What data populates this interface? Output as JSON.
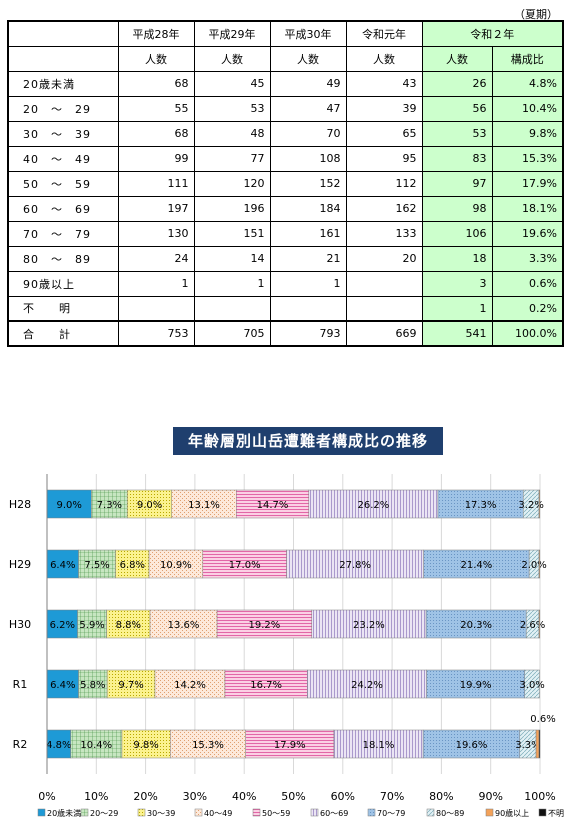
{
  "season_label": "（夏期）",
  "table": {
    "year_headers": [
      "平成28年",
      "平成29年",
      "平成30年",
      "令和元年",
      "令和２年"
    ],
    "sub_headers": [
      "人数",
      "人数",
      "人数",
      "人数",
      "人数",
      "構成比"
    ],
    "rows": [
      {
        "label": "20歳未満",
        "values": [
          "68",
          "45",
          "49",
          "43",
          "26",
          "4.8%"
        ]
      },
      {
        "label": "20　～　29",
        "values": [
          "55",
          "53",
          "47",
          "39",
          "56",
          "10.4%"
        ]
      },
      {
        "label": "30　～　39",
        "values": [
          "68",
          "48",
          "70",
          "65",
          "53",
          "9.8%"
        ]
      },
      {
        "label": "40　～　49",
        "values": [
          "99",
          "77",
          "108",
          "95",
          "83",
          "15.3%"
        ]
      },
      {
        "label": "50　～　59",
        "values": [
          "111",
          "120",
          "152",
          "112",
          "97",
          "17.9%"
        ]
      },
      {
        "label": "60　～　69",
        "values": [
          "197",
          "196",
          "184",
          "162",
          "98",
          "18.1%"
        ]
      },
      {
        "label": "70　～　79",
        "values": [
          "130",
          "151",
          "161",
          "133",
          "106",
          "19.6%"
        ]
      },
      {
        "label": "80　～　89",
        "values": [
          "24",
          "14",
          "21",
          "20",
          "18",
          "3.3%"
        ]
      },
      {
        "label": "90歳以上",
        "values": [
          "1",
          "1",
          "1",
          "",
          "3",
          "0.6%"
        ]
      },
      {
        "label": "不　　明",
        "values": [
          "",
          "",
          "",
          "",
          "1",
          "0.2%"
        ]
      }
    ],
    "total": {
      "label": "合　　計",
      "values": [
        "753",
        "705",
        "793",
        "669",
        "541",
        "100.0%"
      ]
    }
  },
  "chart_data": {
    "type": "bar",
    "stacked": true,
    "orientation": "horizontal",
    "title": "年齢層別山岳遭難者構成比の推移",
    "categories": [
      "H28",
      "H29",
      "H30",
      "R1",
      "R2"
    ],
    "xlim": [
      0,
      100
    ],
    "x_ticks": [
      "0%",
      "10%",
      "20%",
      "30%",
      "40%",
      "50%",
      "60%",
      "70%",
      "80%",
      "90%",
      "100%"
    ],
    "grid": true,
    "legend_position": "bottom",
    "series": [
      {
        "name": "20歳未満",
        "color": "#1e9ad6",
        "values": [
          9.0,
          6.4,
          6.2,
          6.4,
          4.8
        ],
        "labels": [
          "9.0%",
          "6.4%",
          "6.2%",
          "6.4%",
          "4.8%"
        ]
      },
      {
        "name": "20～29",
        "color": "#c7e6c1",
        "values": [
          7.3,
          7.5,
          5.9,
          5.8,
          10.4
        ],
        "labels": [
          "7.3%",
          "7.5%",
          "5.9%",
          "5.8%",
          "10.4%"
        ]
      },
      {
        "name": "30～39",
        "color": "#fbf28f",
        "values": [
          9.0,
          6.8,
          8.8,
          9.7,
          9.8
        ],
        "labels": [
          "9.0%",
          "6.8%",
          "8.8%",
          "9.7%",
          "9.8%"
        ]
      },
      {
        "name": "40～49",
        "color": "#fde3cf",
        "values": [
          13.1,
          10.9,
          13.6,
          14.2,
          15.3
        ],
        "labels": [
          "13.1%",
          "10.9%",
          "13.6%",
          "14.2%",
          "15.3%"
        ]
      },
      {
        "name": "50～59",
        "color": "#f9b6d6",
        "values": [
          14.7,
          17.0,
          19.2,
          16.7,
          17.9
        ],
        "labels": [
          "14.7%",
          "17.0%",
          "19.2%",
          "16.7%",
          "17.9%"
        ]
      },
      {
        "name": "60～69",
        "color": "#ddd3ec",
        "values": [
          26.2,
          27.8,
          23.2,
          24.2,
          18.1
        ],
        "labels": [
          "26.2%",
          "27.8%",
          "23.2%",
          "24.2%",
          "18.1%"
        ]
      },
      {
        "name": "70～79",
        "color": "#9fc3e6",
        "values": [
          17.3,
          21.4,
          20.3,
          19.9,
          19.6
        ],
        "labels": [
          "17.3%",
          "21.4%",
          "20.3%",
          "19.9%",
          "19.6%"
        ]
      },
      {
        "name": "80～89",
        "color": "#cfe7ee",
        "values": [
          3.2,
          2.0,
          2.6,
          3.0,
          3.3
        ],
        "labels": [
          "3.2%",
          "2.0%",
          "2.6%",
          "3.0%",
          "3.3%"
        ]
      },
      {
        "name": "90歳以上",
        "color": "#f3a25a",
        "values": [
          0.1,
          0.1,
          0.1,
          0,
          0.6
        ],
        "labels": [
          "",
          "",
          "",
          "",
          "0.6%"
        ]
      },
      {
        "name": "不明",
        "color": "#111111",
        "values": [
          0,
          0,
          0,
          0,
          0.2
        ],
        "labels": [
          "",
          "",
          "",
          "",
          ""
        ]
      }
    ]
  }
}
